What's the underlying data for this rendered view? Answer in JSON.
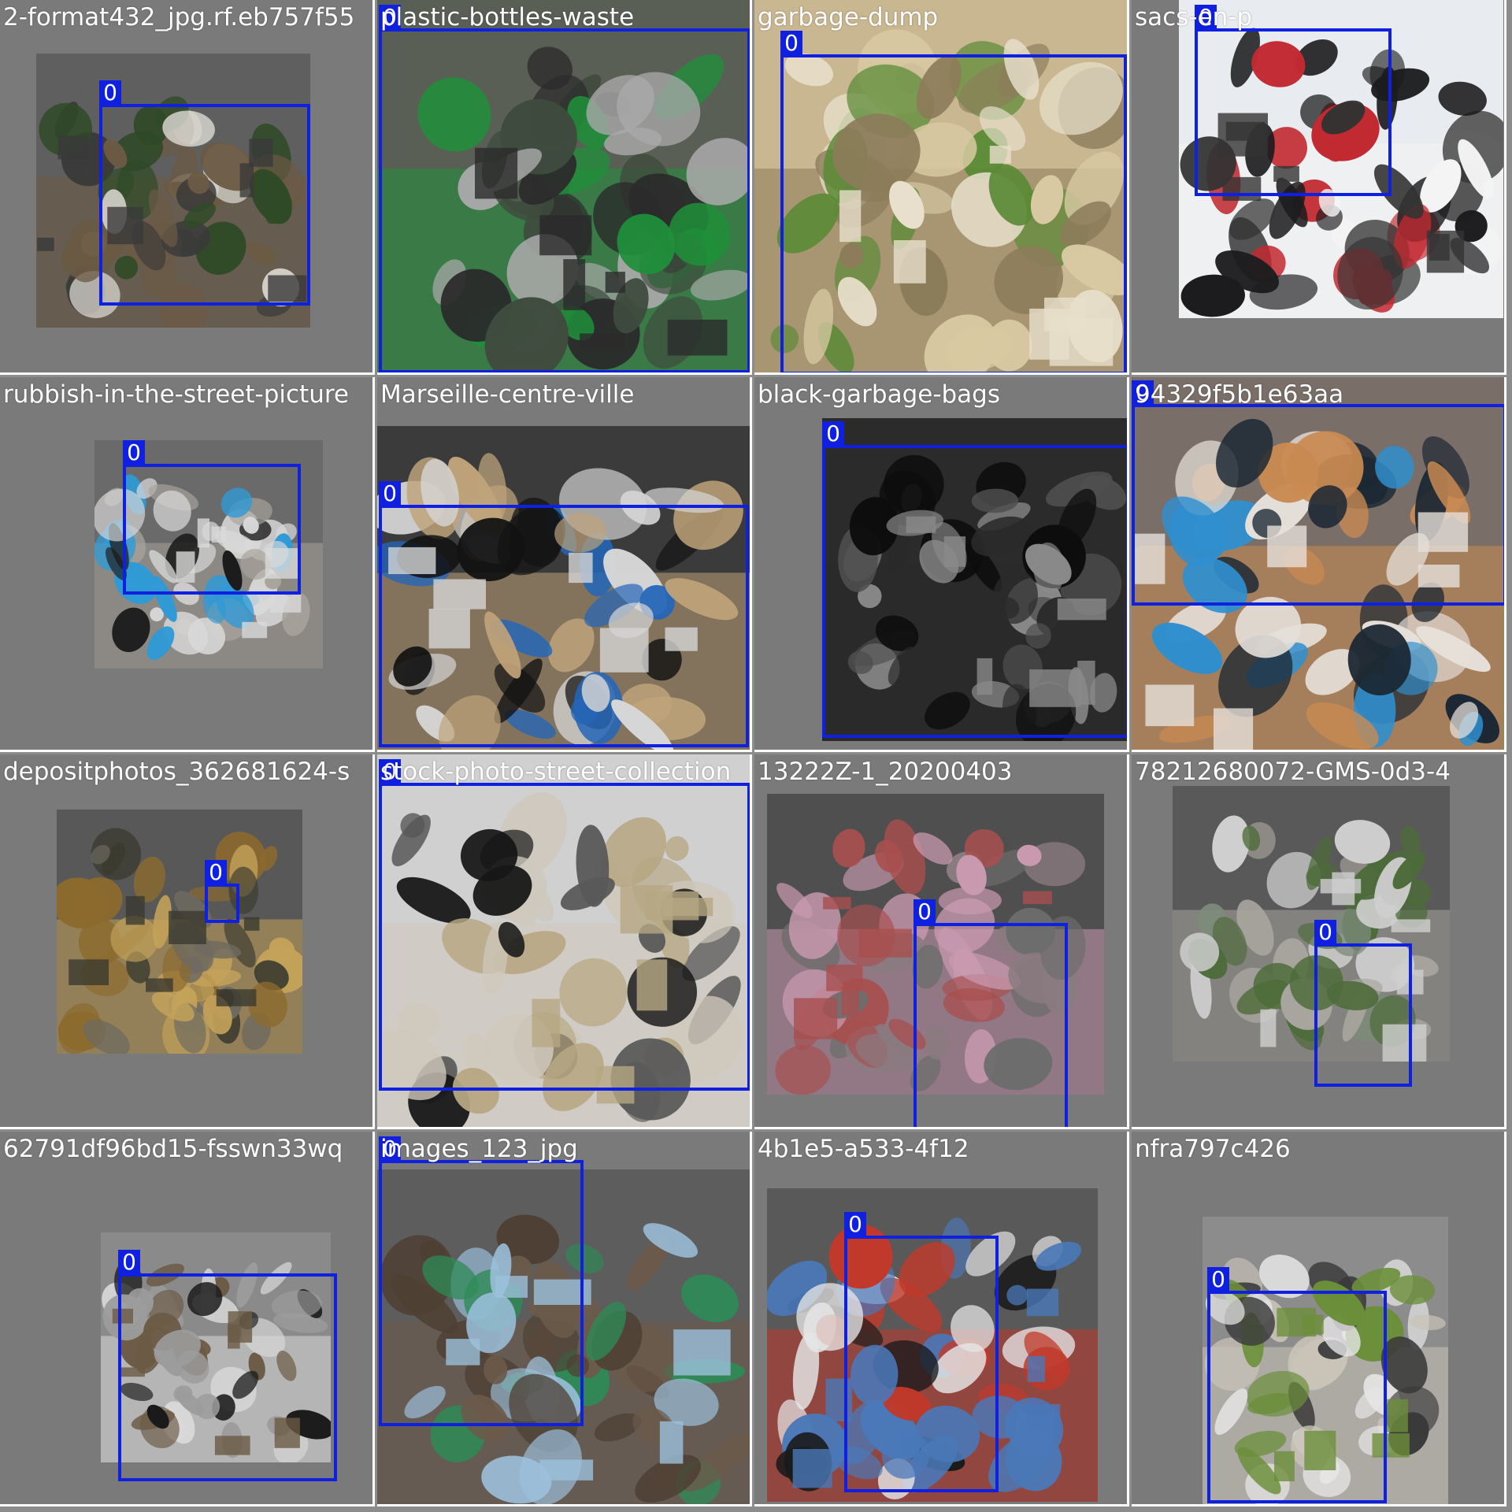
{
  "colors": {
    "box": "#1020e0",
    "label_text": "#ffffff"
  },
  "tiles": [
    {
      "label": "2-format432_jpg.rf.eb757f55",
      "class_id": "0",
      "bg": "#5f5f5f",
      "scene": "green-garden-trash-pile",
      "palette": [
        "#2e4a26",
        "#6b5a44",
        "#d9d6cf",
        "#3a3a3a"
      ]
    },
    {
      "label": "plastic-bottles-waste",
      "class_id": "0",
      "bg": "#5a5f56",
      "scene": "pixelated-bottle-heap",
      "palette": [
        "#3f4b3e",
        "#1f8f3a",
        "#a9a9a9",
        "#2b2b2b"
      ]
    },
    {
      "label": "garbage-dump",
      "class_id": "0",
      "bg": "#c9b791",
      "scene": "bright-dry-debris",
      "palette": [
        "#d8c9a2",
        "#8c7c5a",
        "#5b8a36",
        "#e8e0cc"
      ]
    },
    {
      "label": "sacs-en-p",
      "class_id": "0",
      "bg": "#e8ebef",
      "scene": "rotated-street-black-bags",
      "palette": [
        "#1c1c1e",
        "#f4f4f4",
        "#c22a32",
        "#333333"
      ]
    },
    {
      "label": "rubbish-in-the-street-picture",
      "class_id": "0",
      "bg": "#6a6a6a",
      "scene": "bags-on-sidewalk-blue-bag",
      "palette": [
        "#1a1a1a",
        "#a8a39b",
        "#2f9ad6",
        "#d9d9d9"
      ]
    },
    {
      "label": "Marseille-centre-ville",
      "class_id": "0",
      "bg": "#3b3b3b",
      "scene": "black-bags-and-cardboard",
      "palette": [
        "#121212",
        "#bfa37a",
        "#2466b8",
        "#d6d6d6"
      ]
    },
    {
      "label": "black-garbage-bags",
      "class_id": "0",
      "bg": "#2b2b2b",
      "scene": "dense-black-bag-pile",
      "palette": [
        "#0d0d0d",
        "#2a2a2a",
        "#4f4f4f",
        "#8a8a8a"
      ]
    },
    {
      "label": "94329f5b1e63aa",
      "class_id": "0",
      "bg": "#7a6f68",
      "scene": "mixed-boxes-and-bags",
      "palette": [
        "#1b2733",
        "#c98a52",
        "#2f8fcf",
        "#e6e0da"
      ]
    },
    {
      "label": "depositphotos_362681624-s",
      "class_id": "0",
      "bg": "#585858",
      "scene": "reeds-and-small-litter",
      "palette": [
        "#8c6a2e",
        "#c4a25a",
        "#6e6a60",
        "#3b3a2f"
      ]
    },
    {
      "label": "stock-photo-street-collection",
      "class_id": "0",
      "bg": "#d0d0d0",
      "scene": "stock-black-bags-row",
      "palette": [
        "#161616",
        "#cfc8bc",
        "#585858",
        "#b7a783"
      ]
    },
    {
      "label": "13222Z-1_20200403",
      "class_id": "0",
      "bg": "#4f4f4f",
      "scene": "sidewalk-pink-bags",
      "palette": [
        "#8a7b80",
        "#c99ab0",
        "#6d6d6d",
        "#a84f4f"
      ]
    },
    {
      "label": "78212680072-GMS-0d3-4",
      "class_id": "0",
      "bg": "#595959",
      "scene": "roadside-field-litter",
      "palette": [
        "#7d8a7a",
        "#a8a49e",
        "#4d6b3a",
        "#cfcfcf"
      ]
    },
    {
      "label": "62791df96bd15-fsswn33wq",
      "class_id": "0",
      "bg": "#8a8a8a",
      "scene": "bags-by-bin-snow",
      "palette": [
        "#1a1a1a",
        "#d9d9d9",
        "#9c9c9c",
        "#6b5a44"
      ]
    },
    {
      "label": "images_123_jpg",
      "class_id": "0",
      "bg": "#5d5d5d",
      "scene": "leaf-litter-and-sky",
      "palette": [
        "#4e3f33",
        "#6b5a4a",
        "#2e8b57",
        "#9cc0dc"
      ]
    },
    {
      "label": "4b1e5-a533-4f12",
      "class_id": "0",
      "bg": "#595959",
      "scene": "plastic-monster-sculpture",
      "palette": [
        "#e6e6e6",
        "#c0392b",
        "#1a1a1a",
        "#4a78b8"
      ]
    },
    {
      "label": "nfra797c426",
      "class_id": "0",
      "bg": "#8c8c8c",
      "scene": "truck-and-dump-site",
      "palette": [
        "#e6e6e6",
        "#c9c3b8",
        "#3a3a3a",
        "#6b8f3a"
      ]
    }
  ]
}
